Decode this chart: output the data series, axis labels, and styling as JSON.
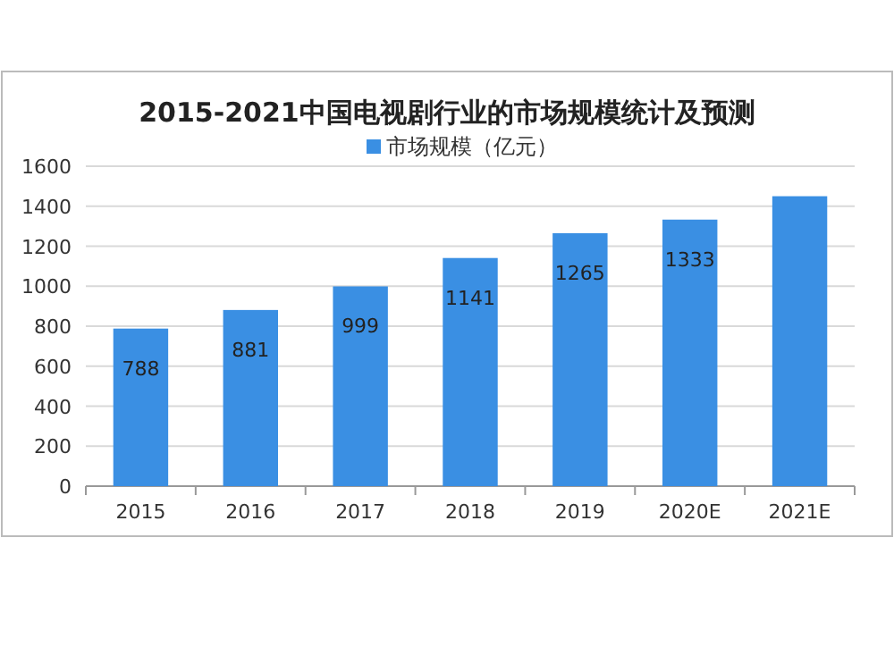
{
  "chart_data": {
    "type": "bar",
    "title": "2015-2021中国电视剧行业的市场规模统计及预测",
    "categories": [
      "2015",
      "2016",
      "2017",
      "2018",
      "2019",
      "2020E",
      "2021E"
    ],
    "series": [
      {
        "name": "市场规模（亿元）",
        "color": "#3a8fe3",
        "values": [
          788,
          881,
          999,
          1141,
          1265,
          1333,
          1450
        ],
        "value_labels": [
          "788",
          "881",
          "999",
          "1141",
          "1265",
          "1333",
          null
        ]
      }
    ],
    "ylim": [
      0,
      1600
    ],
    "yticks": [
      0,
      200,
      400,
      600,
      800,
      1000,
      1200,
      1400,
      1600
    ],
    "grid": "y",
    "legend": "top"
  }
}
